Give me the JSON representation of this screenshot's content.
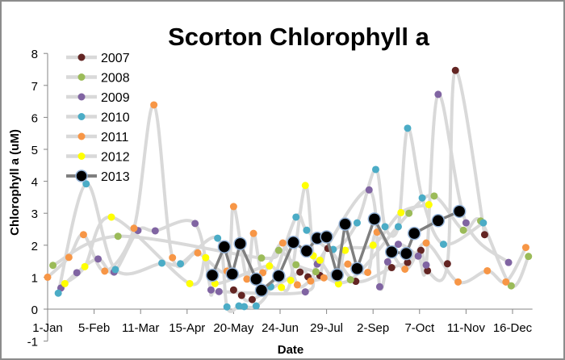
{
  "chart_data": {
    "type": "line",
    "title": "Scorton Chlorophyll a",
    "xlabel": "Date",
    "ylabel": "Chlorophyll a (uM)",
    "x_unit": "day of year (0 = 1-Jan)",
    "xlim": [
      0,
      365
    ],
    "ylim": [
      -1,
      8
    ],
    "yticks": [
      -1,
      0,
      1,
      2,
      3,
      4,
      5,
      6,
      7,
      8
    ],
    "xticks": [
      0,
      35,
      70,
      105,
      140,
      175,
      210,
      245,
      280,
      315,
      350
    ],
    "xtick_labels": [
      "1-Jan",
      "5-Feb",
      "11-Mar",
      "15-Apr",
      "20-May",
      "24-Jun",
      "29-Jul",
      "2-Sep",
      "7-Oct",
      "11-Nov",
      "16-Dec"
    ],
    "legend_position": "top-left",
    "grid": false,
    "series": [
      {
        "name": "2007",
        "color": "#632523",
        "line": "#d9d9d9",
        "x": [
          140,
          146,
          154,
          190,
          196,
          205,
          211,
          232,
          259,
          271,
          281,
          286,
          301,
          307,
          329
        ],
        "y": [
          0.6,
          0.43,
          0.3,
          1.16,
          1.01,
          1.05,
          1.9,
          0.87,
          1.3,
          1.46,
          1.84,
          1.2,
          1.42,
          7.47,
          2.33
        ]
      },
      {
        "name": "2008",
        "color": "#9bbb59",
        "line": "#d9d9d9",
        "x": [
          4,
          53,
          161,
          174,
          187,
          202,
          228,
          272,
          291,
          313,
          326,
          349,
          362
        ],
        "y": [
          1.37,
          2.28,
          1.6,
          1.84,
          1.39,
          1.17,
          0.92,
          3.0,
          3.54,
          2.47,
          2.76,
          0.73,
          1.65
        ]
      },
      {
        "name": "2009",
        "color": "#8064a2",
        "line": "#d9d9d9",
        "x": [
          10,
          22,
          38,
          50,
          68,
          81,
          111,
          123,
          129,
          194,
          203,
          242,
          250,
          256,
          264,
          279,
          285,
          294,
          315,
          347
        ],
        "y": [
          0.66,
          1.14,
          1.57,
          1.16,
          2.46,
          2.45,
          2.68,
          0.6,
          0.55,
          0.54,
          1.41,
          3.73,
          0.7,
          1.48,
          2.03,
          1.66,
          1.38,
          6.72,
          2.7,
          1.46
        ]
      },
      {
        "name": "2010",
        "color": "#4bacc6",
        "line": "#d9d9d9",
        "x": [
          8,
          29,
          51,
          86,
          100,
          128,
          135,
          144,
          148,
          157,
          168,
          187,
          195,
          215,
          233,
          247,
          254,
          264,
          271,
          282,
          298,
          328
        ],
        "y": [
          0.5,
          3.92,
          1.24,
          1.44,
          1.42,
          2.22,
          0.07,
          0.1,
          0.08,
          0.1,
          0.7,
          2.88,
          2.47,
          1.87,
          2.7,
          4.37,
          2.58,
          2.58,
          5.66,
          3.48,
          2.03,
          2.7
        ]
      },
      {
        "name": "2011",
        "color": "#f79646",
        "line": "#d9d9d9",
        "x": [
          0,
          16,
          27,
          43,
          65,
          80,
          94,
          113,
          135,
          140,
          150,
          155,
          162,
          177,
          188,
          198,
          208,
          226,
          241,
          248,
          269,
          285,
          309,
          331,
          345,
          360
        ],
        "y": [
          1.0,
          1.62,
          2.33,
          1.19,
          2.53,
          6.39,
          1.61,
          1.76,
          1.19,
          3.21,
          0.94,
          2.37,
          1.14,
          2.07,
          0.76,
          0.88,
          0.98,
          1.41,
          1.15,
          2.41,
          1.25,
          2.07,
          0.85,
          1.2,
          0.85,
          1.93
        ]
      },
      {
        "name": "2012",
        "color": "#ffff00",
        "line": "#d9d9d9",
        "x": [
          13,
          28,
          48,
          107,
          119,
          126,
          167,
          176,
          183,
          194,
          200,
          205,
          219,
          224,
          245,
          266,
          287
        ],
        "y": [
          0.8,
          1.33,
          2.88,
          0.8,
          1.61,
          0.8,
          1.35,
          0.68,
          0.9,
          3.87,
          1.67,
          1.53,
          0.79,
          1.84,
          2.0,
          3.02,
          3.27
        ]
      },
      {
        "name": "2013",
        "color": "#000000",
        "line": "#7f7f7f",
        "x": [
          124,
          133,
          139,
          145,
          157,
          161,
          174,
          185,
          195,
          203,
          210,
          218,
          224,
          233,
          246,
          259,
          270,
          276,
          294,
          310
        ],
        "y": [
          1.06,
          1.95,
          1.1,
          2.05,
          0.94,
          0.59,
          1.04,
          2.09,
          1.82,
          2.22,
          2.26,
          1.07,
          2.66,
          1.27,
          2.82,
          1.79,
          1.74,
          2.37,
          2.77,
          3.06
        ]
      }
    ]
  }
}
